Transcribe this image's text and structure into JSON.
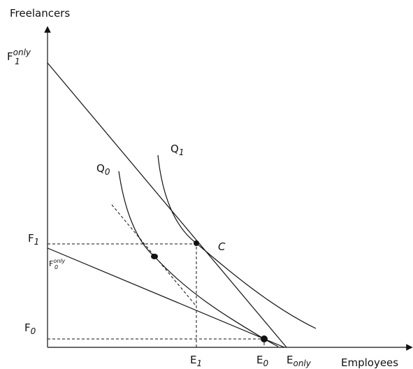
{
  "axes": {
    "y_label": "Freelancers",
    "x_label": "Employees"
  },
  "labels": {
    "f1_only": {
      "base": "F",
      "sub": "1",
      "sup": "only"
    },
    "q1": {
      "base": "Q",
      "sub": "1"
    },
    "q0": {
      "base": "Q",
      "sub": "0"
    },
    "c": {
      "base": "C"
    },
    "f1": {
      "base": "F",
      "sub": "1"
    },
    "f0_only": {
      "base": "F",
      "sub": "0",
      "sup": "only"
    },
    "f0": {
      "base": "F",
      "sub": "0"
    },
    "e1": {
      "base": "E",
      "sub": "1"
    },
    "e0": {
      "base": "E",
      "sub": "0"
    },
    "e_only": {
      "base": "E",
      "sub": "only"
    }
  }
}
